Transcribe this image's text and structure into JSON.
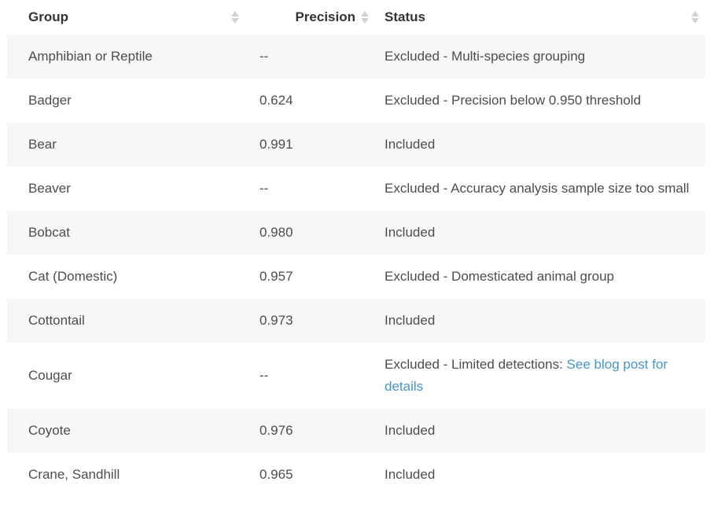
{
  "table": {
    "columns": [
      {
        "label": "Group"
      },
      {
        "label": "Precision"
      },
      {
        "label": "Status"
      }
    ],
    "rows": [
      {
        "group": "Amphibian or Reptile",
        "precision": "--",
        "status": "Excluded - Multi-species grouping"
      },
      {
        "group": "Badger",
        "precision": "0.624",
        "status": "Excluded - Precision below 0.950 threshold"
      },
      {
        "group": "Bear",
        "precision": "0.991",
        "status": "Included"
      },
      {
        "group": "Beaver",
        "precision": "--",
        "status": "Excluded - Accuracy analysis sample size too small"
      },
      {
        "group": "Bobcat",
        "precision": "0.980",
        "status": "Included"
      },
      {
        "group": "Cat (Domestic)",
        "precision": "0.957",
        "status": "Excluded - Domesticated animal group"
      },
      {
        "group": "Cottontail",
        "precision": "0.973",
        "status": "Included"
      },
      {
        "group": "Cougar",
        "precision": "--",
        "status": "Excluded - Limited detections:",
        "status_link": "See blog post for details"
      },
      {
        "group": "Coyote",
        "precision": "0.976",
        "status": "Included"
      },
      {
        "group": "Crane, Sandhill",
        "precision": "0.965",
        "status": "Included"
      }
    ],
    "colors": {
      "stripe": "#f7f7f7",
      "link": "#4696c8",
      "header_text": "#333333",
      "body_text": "#4d4d4d",
      "sort_icon": "#d2d2d2"
    }
  }
}
